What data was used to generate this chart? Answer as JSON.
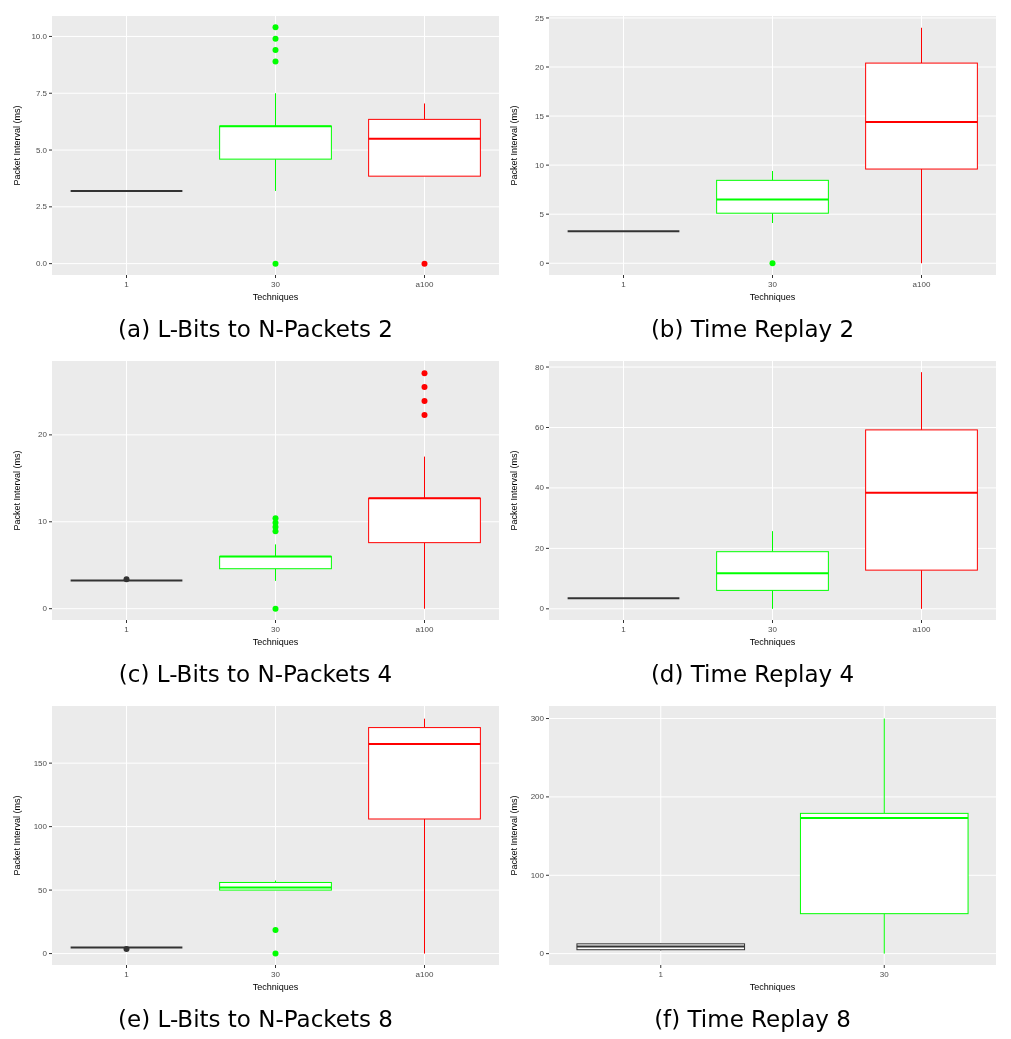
{
  "chart_data": [
    {
      "type": "box",
      "title": "(a) L-Bits to N-Packets 2",
      "xlabel": "Techniques",
      "ylabel": "Packet Interval (ms)",
      "categories": [
        "1",
        "30",
        "a100"
      ],
      "colors": [
        "#333333",
        "#00ff00",
        "#ff0000"
      ],
      "ylim": [
        -0.5,
        10.9
      ],
      "yticks": [
        {
          "value": 0,
          "label": "0.0"
        },
        {
          "value": 2.5,
          "label": "2.5"
        },
        {
          "value": 5,
          "label": "5.0"
        },
        {
          "value": 7.5,
          "label": "7.5"
        },
        {
          "value": 10,
          "label": "10.0"
        }
      ],
      "grid": true,
      "boxes": [
        {
          "low": 3.2,
          "q1": 3.2,
          "median": 3.2,
          "q3": 3.2,
          "high": 3.2
        },
        {
          "low": 3.2,
          "q1": 4.6,
          "median": 6.05,
          "q3": 6.05,
          "high": 7.5,
          "outliers": [
            10.4,
            9.9,
            9.4,
            8.9,
            0
          ]
        },
        {
          "low": 3.85,
          "q1": 3.85,
          "median": 5.5,
          "q3": 6.35,
          "high": 7.05,
          "outliers": [
            0
          ]
        }
      ]
    },
    {
      "type": "box",
      "title": "(b) Time Replay 2",
      "xlabel": "Techniques",
      "ylabel": "Packet Interval (ms)",
      "categories": [
        "1",
        "30",
        "a100"
      ],
      "colors": [
        "#333333",
        "#00ff00",
        "#ff0000"
      ],
      "ylim": [
        -1.2,
        25.2
      ],
      "yticks": [
        0,
        5,
        10,
        15,
        20,
        25
      ],
      "grid": true,
      "boxes": [
        {
          "low": 3.25,
          "q1": 3.25,
          "median": 3.25,
          "q3": 3.25,
          "high": 3.25
        },
        {
          "low": 4.1,
          "q1": 5.1,
          "median": 6.5,
          "q3": 8.45,
          "high": 9.4,
          "outliers": [
            0
          ]
        },
        {
          "low": 0,
          "q1": 9.6,
          "median": 14.4,
          "q3": 20.4,
          "high": 24
        }
      ]
    },
    {
      "type": "box",
      "title": "(c) L-Bits to N-Packets 4",
      "xlabel": "Techniques",
      "ylabel": "Packet Interval (ms)",
      "categories": [
        "1",
        "30",
        "a100"
      ],
      "colors": [
        "#333333",
        "#00ff00",
        "#ff0000"
      ],
      "ylim": [
        -1.3,
        28.5
      ],
      "yticks": [
        0,
        10,
        20
      ],
      "grid": true,
      "boxes": [
        {
          "low": 3.25,
          "q1": 3.25,
          "median": 3.25,
          "q3": 3.25,
          "high": 3.25,
          "outliers": [
            3.4
          ]
        },
        {
          "low": 3.2,
          "q1": 4.6,
          "median": 6,
          "q3": 6,
          "high": 7.4,
          "outliers": [
            10.4,
            9.9,
            9.4,
            8.9,
            0
          ]
        },
        {
          "low": 0,
          "q1": 7.6,
          "median": 12.7,
          "q3": 12.7,
          "high": 17.5,
          "outliers": [
            27.1,
            25.5,
            23.9,
            22.3
          ]
        }
      ]
    },
    {
      "type": "box",
      "title": "(d) Time Replay 4",
      "xlabel": "Techniques",
      "ylabel": "Packet Interval (ms)",
      "categories": [
        "1",
        "30",
        "a100"
      ],
      "colors": [
        "#333333",
        "#00ff00",
        "#ff0000"
      ],
      "ylim": [
        -3.7,
        82
      ],
      "yticks": [
        0,
        20,
        40,
        60,
        80
      ],
      "grid": true,
      "boxes": [
        {
          "low": 3.5,
          "q1": 3.5,
          "median": 3.5,
          "q3": 3.5,
          "high": 3.5
        },
        {
          "low": 0,
          "q1": 6.1,
          "median": 11.8,
          "q3": 18.9,
          "high": 25.7
        },
        {
          "low": 0,
          "q1": 12.8,
          "median": 38.4,
          "q3": 59.2,
          "high": 78.3
        }
      ]
    },
    {
      "type": "box",
      "title": "(e) L-Bits to N-Packets 8",
      "xlabel": "Techniques",
      "ylabel": "Packet Interval (ms)",
      "categories": [
        "1",
        "30",
        "a100"
      ],
      "colors": [
        "#333333",
        "#00ff00",
        "#ff0000"
      ],
      "ylim": [
        -9,
        195
      ],
      "yticks": [
        0,
        50,
        100,
        150
      ],
      "grid": true,
      "boxes": [
        {
          "low": 4.75,
          "q1": 4.75,
          "median": 4.75,
          "q3": 4.75,
          "high": 4.75,
          "outliers": [
            3.7
          ]
        },
        {
          "low": 50,
          "q1": 50,
          "median": 52,
          "q3": 56,
          "high": 57.5,
          "outliers": [
            18.5,
            0
          ]
        },
        {
          "low": 0,
          "q1": 106,
          "median": 165,
          "q3": 178,
          "high": 185
        }
      ]
    },
    {
      "type": "box",
      "title": "(f) Time Replay 8",
      "xlabel": "Techniques",
      "ylabel": "Packet Interval (ms)",
      "categories": [
        "1",
        "30"
      ],
      "colors": [
        "#333333",
        "#00ff00"
      ],
      "ylim": [
        -14.5,
        316
      ],
      "yticks": [
        0,
        100,
        200,
        300
      ],
      "grid": true,
      "boxes": [
        {
          "low": 4,
          "q1": 5,
          "median": 9,
          "q3": 12.5,
          "high": 13
        },
        {
          "low": 0,
          "q1": 51,
          "median": 173,
          "q3": 179,
          "high": 300
        }
      ]
    }
  ]
}
